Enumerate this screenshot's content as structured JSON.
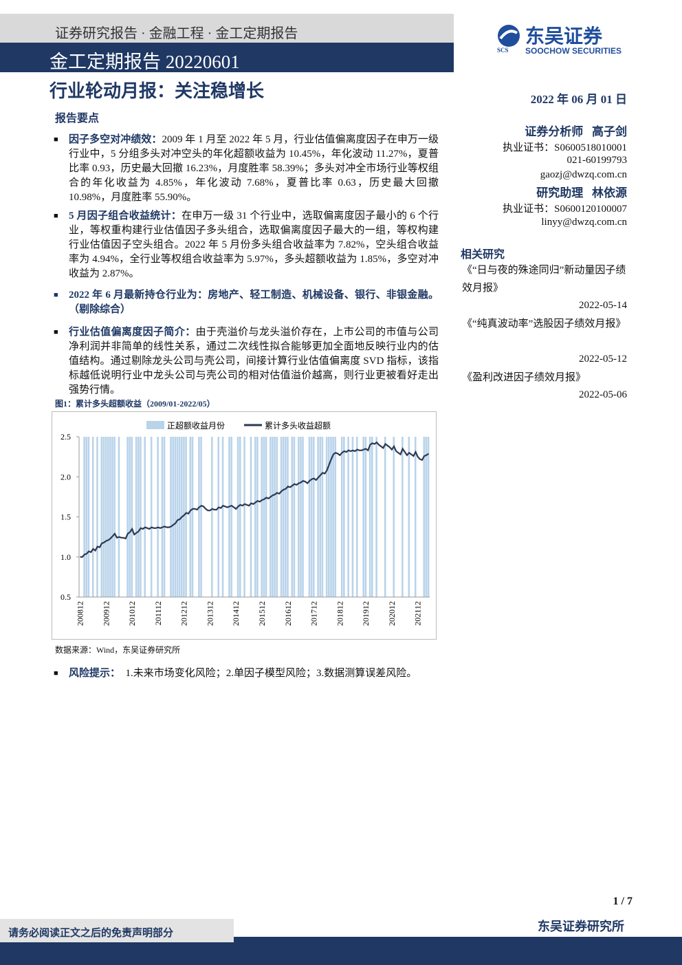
{
  "header": {
    "breadcrumb": "证券研究报告 · 金融工程 · 金工定期报告",
    "band": "金工定期报告 20220601",
    "logo_cn": "东吴证券",
    "logo_en": "SOOCHOW SECURITIES",
    "logo_mark": "SCS"
  },
  "title": "行业轮动月报：关注稳增长",
  "date": "2022 年 06 月 01 日",
  "section": "报告要点",
  "analysts": [
    {
      "role": "证券分析师",
      "name": "高子剑",
      "cert": "执业证书：S0600518010001",
      "phone": "021-60199793",
      "email": "gaozj@dwzq.com.cn"
    },
    {
      "role": "研究助理",
      "name": "林依源",
      "cert": "执业证书：S0600120100007",
      "email": "linyy@dwzq.com.cn"
    }
  ],
  "related": {
    "heading": "相关研究",
    "items": [
      {
        "title": "《“日与夜的殊途同归”新动量因子绩效月报》",
        "date": "2022-05-14"
      },
      {
        "title": "《“纯真波动率”选股因子绩效月报》",
        "date": "2022-05-12"
      },
      {
        "title": "《盈利改进因子绩效月报》",
        "date": "2022-05-06"
      }
    ]
  },
  "bullets": [
    {
      "lead": "因子多空对冲绩效：",
      "body": "2009 年 1 月至 2022 年 5 月，行业估值偏离度因子在申万一级行业中，5 分组多头对冲空头的年化超额收益为 10.45%，年化波动 11.27%，夏普比率 0.93，历史最大回撤 16.23%，月度胜率 58.39%；多头对冲全市场行业等权组合的年化收益为 4.85%，年化波动 7.68%，夏普比率 0.63，历史最大回撤 10.98%，月度胜率 55.90%。"
    },
    {
      "lead": "5 月因子组合收益统计：",
      "body": "在申万一级 31 个行业中，选取偏离度因子最小的 6 个行业，等权重构建行业估值因子多头组合，选取偏离度因子最大的一组，等权构建行业估值因子空头组合。2022 年 5 月份多头组合收益率为 7.82%，空头组合收益率为 4.94%，全行业等权组合收益率为 5.97%，多头超额收益为 1.85%，多空对冲收益为 2.87%。"
    },
    {
      "lead": "2022 年 6 月最新持仓行业为：",
      "body": "房地产、轻工制造、机械设备、银行、非银金融。（剔除综合）"
    },
    {
      "lead": "行业估值偏离度因子简介：",
      "body": "由于壳溢价与龙头溢价存在，上市公司的市值与公司净利润并非简单的线性关系，通过二次线性拟合能够更加全面地反映行业内的估值结构。通过剔除龙头公司与壳公司，间接计算行业估值偏离度 SVD 指标，该指标越低说明行业中龙头公司与壳公司的相对估值溢价越高，则行业更被看好走出强势行情。"
    }
  ],
  "figure_caption": "图1：累计多头超额收益（2009/01-2022/05）",
  "source": "数据来源：Wind，东吴证券研究所",
  "risk": {
    "lead": "风险提示：",
    "body": "1.未来市场变化风险；2.单因子模型风险；3.数据测算误差风险。"
  },
  "footer": {
    "page": "1 / 7",
    "institute": "东吴证券研究所",
    "disclaimer": "请务必阅读正文之后的免责声明部分"
  },
  "chart_data": {
    "type": "bar_line",
    "categories": [
      "200812",
      null,
      null,
      null,
      null,
      null,
      null,
      null,
      null,
      null,
      null,
      null,
      "200912",
      null,
      null,
      null,
      null,
      null,
      null,
      null,
      null,
      null,
      null,
      null,
      "201012",
      null,
      null,
      null,
      null,
      null,
      null,
      null,
      null,
      null,
      null,
      null,
      "201112",
      null,
      null,
      null,
      null,
      null,
      null,
      null,
      null,
      null,
      null,
      null,
      "201212",
      null,
      null,
      null,
      null,
      null,
      null,
      null,
      null,
      null,
      null,
      null,
      "201312",
      null,
      null,
      null,
      null,
      null,
      null,
      null,
      null,
      null,
      null,
      null,
      "201412",
      null,
      null,
      null,
      null,
      null,
      null,
      null,
      null,
      null,
      null,
      null,
      "201512",
      null,
      null,
      null,
      null,
      null,
      null,
      null,
      null,
      null,
      null,
      null,
      "201612",
      null,
      null,
      null,
      null,
      null,
      null,
      null,
      null,
      null,
      null,
      null,
      "201712",
      null,
      null,
      null,
      null,
      null,
      null,
      null,
      null,
      null,
      null,
      null,
      "201812",
      null,
      null,
      null,
      null,
      null,
      null,
      null,
      null,
      null,
      null,
      null,
      "201912",
      null,
      null,
      null,
      null,
      null,
      null,
      null,
      null,
      null,
      null,
      null,
      "202012",
      null,
      null,
      null,
      null,
      null,
      null,
      null,
      null,
      null,
      null,
      null,
      "202112",
      null,
      null,
      null,
      null,
      null
    ],
    "series": [
      {
        "name": "正超额收益月份",
        "kind": "bar",
        "color": "#b9d3ea",
        "values": [
          null,
          null,
          2.5,
          2.5,
          2.5,
          null,
          2.5,
          null,
          2.5,
          null,
          2.5,
          2.5,
          2.5,
          2.5,
          2.5,
          2.5,
          2.5,
          null,
          2.5,
          null,
          null,
          null,
          2.5,
          2.5,
          2.5,
          null,
          2.5,
          2.5,
          2.5,
          null,
          2.5,
          null,
          null,
          2.5,
          null,
          null,
          2.5,
          null,
          2.5,
          2.5,
          null,
          null,
          2.5,
          2.5,
          2.5,
          2.5,
          2.5,
          2.5,
          2.5,
          2.5,
          null,
          2.5,
          2.5,
          null,
          null,
          2.5,
          2.5,
          null,
          null,
          null,
          null,
          2.5,
          null,
          null,
          2.5,
          null,
          2.5,
          null,
          null,
          2.5,
          2.5,
          null,
          null,
          2.5,
          2.5,
          null,
          2.5,
          null,
          null,
          2.5,
          null,
          2.5,
          2.5,
          null,
          2.5,
          2.5,
          2.5,
          null,
          2.5,
          2.5,
          2.5,
          2.5,
          null,
          2.5,
          2.5,
          2.5,
          2.5,
          null,
          2.5,
          2.5,
          null,
          2.5,
          2.5,
          2.5,
          null,
          null,
          2.5,
          2.5,
          2.5,
          null,
          2.5,
          2.5,
          2.5,
          null,
          2.5,
          2.5,
          2.5,
          2.5,
          2.5,
          null,
          null,
          2.5,
          2.5,
          null,
          2.5,
          null,
          2.5,
          null,
          2.5,
          null,
          null,
          2.5,
          2.5,
          null,
          2.5,
          2.5,
          null,
          2.5,
          null,
          null,
          null,
          2.5,
          null,
          null,
          null,
          2.5,
          null,
          null,
          null,
          2.5,
          null,
          null,
          2.5,
          null,
          null,
          2.5,
          null,
          null,
          null,
          2.5,
          2.5,
          2.5
        ]
      },
      {
        "name": "累计多头收益超额",
        "kind": "line",
        "color": "#2b3a55",
        "values": [
          1.0,
          1.0,
          1.03,
          1.04,
          1.07,
          1.06,
          1.1,
          1.08,
          1.13,
          1.12,
          1.17,
          1.18,
          1.2,
          1.21,
          1.23,
          1.26,
          1.29,
          1.24,
          1.25,
          1.24,
          1.24,
          1.23,
          1.29,
          1.31,
          1.35,
          1.28,
          1.3,
          1.32,
          1.36,
          1.35,
          1.37,
          1.36,
          1.35,
          1.37,
          1.36,
          1.36,
          1.37,
          1.36,
          1.37,
          1.38,
          1.37,
          1.37,
          1.38,
          1.4,
          1.42,
          1.46,
          1.47,
          1.5,
          1.52,
          1.55,
          1.54,
          1.58,
          1.6,
          1.6,
          1.59,
          1.62,
          1.64,
          1.63,
          1.6,
          1.58,
          1.58,
          1.6,
          1.59,
          1.59,
          1.62,
          1.61,
          1.64,
          1.63,
          1.62,
          1.63,
          1.64,
          1.62,
          1.6,
          1.63,
          1.65,
          1.64,
          1.66,
          1.65,
          1.64,
          1.67,
          1.66,
          1.68,
          1.7,
          1.69,
          1.71,
          1.72,
          1.74,
          1.73,
          1.75,
          1.77,
          1.78,
          1.8,
          1.79,
          1.82,
          1.84,
          1.85,
          1.88,
          1.87,
          1.89,
          1.91,
          1.9,
          1.92,
          1.93,
          1.95,
          1.94,
          1.92,
          1.95,
          1.97,
          1.98,
          1.96,
          1.99,
          2.02,
          2.05,
          2.04,
          2.08,
          2.15,
          2.22,
          2.28,
          2.3,
          2.29,
          2.27,
          2.3,
          2.32,
          2.31,
          2.33,
          2.32,
          2.33,
          2.32,
          2.34,
          2.33,
          2.33,
          2.34,
          2.35,
          2.33,
          2.4,
          2.42,
          2.41,
          2.43,
          2.4,
          2.38,
          2.36,
          2.41,
          2.39,
          2.37,
          2.34,
          2.38,
          2.32,
          2.3,
          2.28,
          2.35,
          2.31,
          2.27,
          2.3,
          2.28,
          2.26,
          2.31,
          2.25,
          2.22,
          2.21,
          2.26,
          2.27,
          2.29
        ]
      }
    ],
    "ylim": [
      0.5,
      2.5
    ],
    "yticks": [
      0.5,
      {
        "value": 1,
        "label": "1.0"
      },
      1.5,
      {
        "value": 2,
        "label": "2.0"
      },
      2.5
    ],
    "grid": false,
    "legend": "top"
  }
}
